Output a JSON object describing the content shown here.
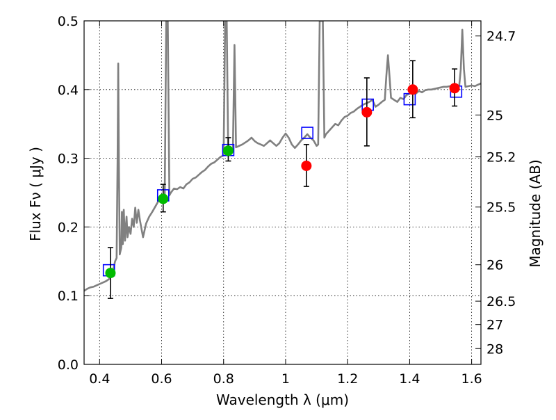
{
  "chart_data": {
    "type": "scatter",
    "xlabel": "Wavelength  λ (μm)",
    "ylabel": "Flux  Fν  ( μJy )",
    "y2label": "Magnitude (AB)",
    "xlim": [
      0.35,
      1.63
    ],
    "ylim": [
      0.0,
      0.5
    ],
    "grid": true,
    "x_ticks": [
      {
        "value": 0.4,
        "label": "0.4"
      },
      {
        "value": 0.6,
        "label": "0.6"
      },
      {
        "value": 0.8,
        "label": "0.8"
      },
      {
        "value": 1.0,
        "label": "1"
      },
      {
        "value": 1.2,
        "label": "1.2"
      },
      {
        "value": 1.4,
        "label": "1.4"
      },
      {
        "value": 1.6,
        "label": "1.6"
      }
    ],
    "y_ticks": [
      {
        "value": 0.0,
        "label": "0.0"
      },
      {
        "value": 0.1,
        "label": "0.1"
      },
      {
        "value": 0.2,
        "label": "0.2"
      },
      {
        "value": 0.3,
        "label": "0.3"
      },
      {
        "value": 0.4,
        "label": "0.4"
      },
      {
        "value": 0.5,
        "label": "0.5"
      }
    ],
    "y2_ticks": [
      {
        "flux": 0.478,
        "label": "24.7"
      },
      {
        "flux": 0.363,
        "label": "25"
      },
      {
        "flux": 0.302,
        "label": "25.2"
      },
      {
        "flux": 0.229,
        "label": "25.5"
      },
      {
        "flux": 0.145,
        "label": "26"
      },
      {
        "flux": 0.092,
        "label": "26.5"
      },
      {
        "flux": 0.058,
        "label": "27"
      },
      {
        "flux": 0.023,
        "label": "28"
      }
    ],
    "spectrum": {
      "color": "#808080",
      "points": [
        [
          0.35,
          0.107
        ],
        [
          0.36,
          0.11
        ],
        [
          0.37,
          0.112
        ],
        [
          0.38,
          0.113
        ],
        [
          0.39,
          0.115
        ],
        [
          0.4,
          0.117
        ],
        [
          0.41,
          0.119
        ],
        [
          0.42,
          0.121
        ],
        [
          0.43,
          0.124
        ],
        [
          0.44,
          0.132
        ],
        [
          0.445,
          0.14
        ],
        [
          0.45,
          0.15
        ],
        [
          0.455,
          0.155
        ],
        [
          0.458,
          0.3
        ],
        [
          0.46,
          0.438
        ],
        [
          0.462,
          0.3
        ],
        [
          0.465,
          0.16
        ],
        [
          0.47,
          0.17
        ],
        [
          0.472,
          0.222
        ],
        [
          0.475,
          0.175
        ],
        [
          0.478,
          0.225
        ],
        [
          0.482,
          0.18
        ],
        [
          0.487,
          0.215
        ],
        [
          0.49,
          0.185
        ],
        [
          0.495,
          0.2
        ],
        [
          0.5,
          0.19
        ],
        [
          0.505,
          0.212
        ],
        [
          0.51,
          0.2
        ],
        [
          0.515,
          0.228
        ],
        [
          0.52,
          0.206
        ],
        [
          0.525,
          0.225
        ],
        [
          0.53,
          0.21
        ],
        [
          0.54,
          0.185
        ],
        [
          0.545,
          0.195
        ],
        [
          0.55,
          0.205
        ],
        [
          0.56,
          0.215
        ],
        [
          0.57,
          0.222
        ],
        [
          0.58,
          0.23
        ],
        [
          0.59,
          0.238
        ],
        [
          0.6,
          0.242
        ],
        [
          0.61,
          0.244
        ],
        [
          0.615,
          0.5
        ],
        [
          0.62,
          0.5
        ],
        [
          0.625,
          0.246
        ],
        [
          0.63,
          0.25
        ],
        [
          0.64,
          0.256
        ],
        [
          0.65,
          0.255
        ],
        [
          0.66,
          0.258
        ],
        [
          0.67,
          0.256
        ],
        [
          0.68,
          0.262
        ],
        [
          0.69,
          0.265
        ],
        [
          0.7,
          0.27
        ],
        [
          0.71,
          0.272
        ],
        [
          0.72,
          0.276
        ],
        [
          0.73,
          0.28
        ],
        [
          0.74,
          0.283
        ],
        [
          0.75,
          0.288
        ],
        [
          0.76,
          0.292
        ],
        [
          0.77,
          0.294
        ],
        [
          0.78,
          0.298
        ],
        [
          0.79,
          0.302
        ],
        [
          0.8,
          0.304
        ],
        [
          0.805,
          0.5
        ],
        [
          0.81,
          0.5
        ],
        [
          0.815,
          0.306
        ],
        [
          0.82,
          0.308
        ],
        [
          0.83,
          0.312
        ],
        [
          0.835,
          0.465
        ],
        [
          0.84,
          0.316
        ],
        [
          0.85,
          0.318
        ],
        [
          0.86,
          0.32
        ],
        [
          0.87,
          0.323
        ],
        [
          0.88,
          0.326
        ],
        [
          0.89,
          0.33
        ],
        [
          0.9,
          0.325
        ],
        [
          0.91,
          0.322
        ],
        [
          0.92,
          0.32
        ],
        [
          0.93,
          0.318
        ],
        [
          0.94,
          0.322
        ],
        [
          0.95,
          0.326
        ],
        [
          0.96,
          0.322
        ],
        [
          0.97,
          0.318
        ],
        [
          0.98,
          0.322
        ],
        [
          0.99,
          0.33
        ],
        [
          1.0,
          0.336
        ],
        [
          1.01,
          0.33
        ],
        [
          1.02,
          0.32
        ],
        [
          1.03,
          0.315
        ],
        [
          1.04,
          0.32
        ],
        [
          1.05,
          0.326
        ],
        [
          1.06,
          0.33
        ],
        [
          1.07,
          0.335
        ],
        [
          1.08,
          0.33
        ],
        [
          1.09,
          0.326
        ],
        [
          1.1,
          0.318
        ],
        [
          1.105,
          0.32
        ],
        [
          1.11,
          0.5
        ],
        [
          1.12,
          0.5
        ],
        [
          1.125,
          0.33
        ],
        [
          1.13,
          0.335
        ],
        [
          1.14,
          0.34
        ],
        [
          1.15,
          0.345
        ],
        [
          1.16,
          0.35
        ],
        [
          1.17,
          0.348
        ],
        [
          1.18,
          0.355
        ],
        [
          1.19,
          0.36
        ],
        [
          1.2,
          0.362
        ],
        [
          1.21,
          0.366
        ],
        [
          1.22,
          0.368
        ],
        [
          1.23,
          0.372
        ],
        [
          1.24,
          0.375
        ],
        [
          1.25,
          0.378
        ],
        [
          1.26,
          0.38
        ],
        [
          1.27,
          0.382
        ],
        [
          1.28,
          0.385
        ],
        [
          1.29,
          0.375
        ],
        [
          1.3,
          0.378
        ],
        [
          1.31,
          0.382
        ],
        [
          1.32,
          0.385
        ],
        [
          1.325,
          0.42
        ],
        [
          1.33,
          0.45
        ],
        [
          1.335,
          0.42
        ],
        [
          1.34,
          0.388
        ],
        [
          1.35,
          0.385
        ],
        [
          1.36,
          0.382
        ],
        [
          1.37,
          0.388
        ],
        [
          1.38,
          0.386
        ],
        [
          1.39,
          0.392
        ],
        [
          1.4,
          0.394
        ],
        [
          1.41,
          0.396
        ],
        [
          1.42,
          0.394
        ],
        [
          1.43,
          0.398
        ],
        [
          1.44,
          0.396
        ],
        [
          1.45,
          0.399
        ],
        [
          1.46,
          0.4
        ],
        [
          1.47,
          0.4
        ],
        [
          1.48,
          0.401
        ],
        [
          1.49,
          0.402
        ],
        [
          1.5,
          0.403
        ],
        [
          1.51,
          0.404
        ],
        [
          1.52,
          0.404
        ],
        [
          1.53,
          0.405
        ],
        [
          1.54,
          0.403
        ],
        [
          1.55,
          0.405
        ],
        [
          1.56,
          0.406
        ],
        [
          1.565,
          0.43
        ],
        [
          1.57,
          0.487
        ],
        [
          1.575,
          0.43
        ],
        [
          1.58,
          0.404
        ],
        [
          1.59,
          0.405
        ],
        [
          1.6,
          0.406
        ],
        [
          1.61,
          0.405
        ],
        [
          1.62,
          0.407
        ],
        [
          1.63,
          0.409
        ]
      ]
    },
    "model_boxes": {
      "color": "#0000ff",
      "points": [
        [
          0.43,
          0.137
        ],
        [
          0.605,
          0.246
        ],
        [
          0.815,
          0.312
        ],
        [
          1.07,
          0.337
        ],
        [
          1.265,
          0.378
        ],
        [
          1.4,
          0.386
        ],
        [
          1.55,
          0.397
        ]
      ]
    },
    "green_points": {
      "color": "#00bb00",
      "points": [
        {
          "x": 0.435,
          "y": 0.133,
          "err_lo": 0.096,
          "err_hi": 0.17
        },
        {
          "x": 0.605,
          "y": 0.241,
          "err_lo": 0.222,
          "err_hi": 0.262
        },
        {
          "x": 0.815,
          "y": 0.311,
          "err_lo": 0.296,
          "err_hi": 0.33
        }
      ]
    },
    "red_points": {
      "color": "#ff0000",
      "points": [
        {
          "x": 1.067,
          "y": 0.289,
          "err_lo": 0.259,
          "err_hi": 0.32
        },
        {
          "x": 1.262,
          "y": 0.367,
          "err_lo": 0.318,
          "err_hi": 0.417
        },
        {
          "x": 1.41,
          "y": 0.4,
          "err_lo": 0.359,
          "err_hi": 0.442
        },
        {
          "x": 1.545,
          "y": 0.402,
          "err_lo": 0.376,
          "err_hi": 0.43
        }
      ]
    }
  }
}
